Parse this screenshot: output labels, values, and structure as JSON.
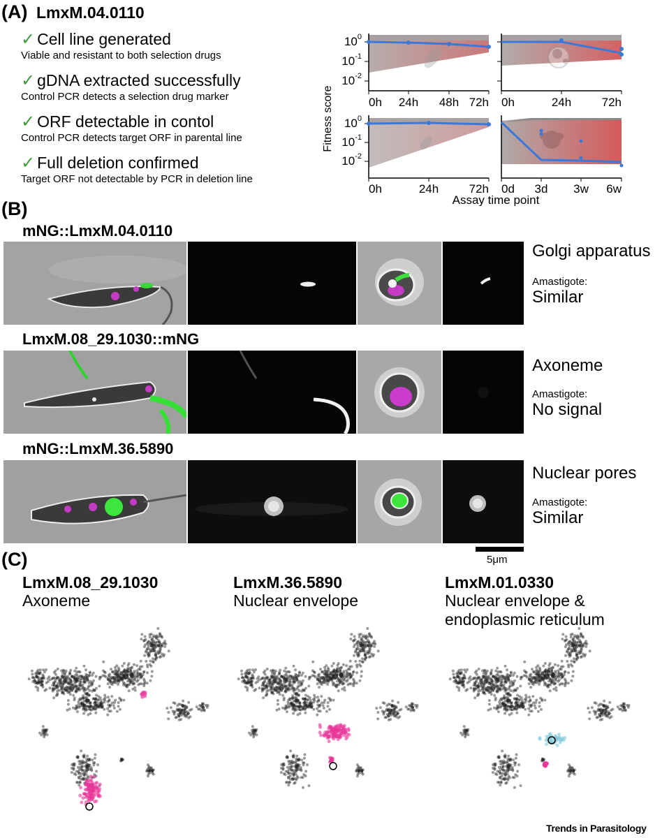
{
  "panelA": {
    "label": "(A)",
    "gene": "LmxM.04.0110",
    "checks": [
      {
        "title": "Cell line generated",
        "detail": "Viable and resistant to both selection drugs"
      },
      {
        "title": "gDNA extracted successfully",
        "detail": "Control PCR detects a selection drug marker"
      },
      {
        "title": "ORF detectable in contol",
        "detail": "Control PCR detects target ORF in parental line"
      },
      {
        "title": "Full deletion confirmed",
        "detail": "Target ORF not detectable by PCR in deletion line"
      }
    ],
    "y_axis_label": "Fitness score",
    "x_axis_label": "Assay time point"
  },
  "chart_data": [
    {
      "type": "line",
      "panel": "top-left",
      "x": [
        "0h",
        "24h",
        "48h",
        "72h"
      ],
      "ylog": true,
      "yticks": [
        "10^0",
        "10^-1",
        "10^-2"
      ],
      "series": [
        {
          "values": [
            1.0,
            0.92,
            0.78,
            0.55
          ]
        }
      ],
      "points": [
        [
          0,
          1.0
        ],
        [
          72,
          0.5
        ]
      ]
    },
    {
      "type": "line",
      "panel": "top-right",
      "x": [
        "0h",
        "24h",
        "72h"
      ],
      "ylog": true,
      "series": [
        {
          "values": [
            1.0,
            1.0,
            0.22
          ]
        }
      ],
      "points": [
        [
          24,
          1.1
        ],
        [
          72,
          0.3
        ],
        [
          72,
          0.18
        ]
      ]
    },
    {
      "type": "line",
      "panel": "bottom-left",
      "x": [
        "0h",
        "24h",
        "72h"
      ],
      "ylog": true,
      "yticks": [
        "10^0",
        "10^-1",
        "10^-2"
      ],
      "series": [
        {
          "values": [
            1.0,
            1.05,
            0.9
          ]
        }
      ],
      "points": []
    },
    {
      "type": "line",
      "panel": "bottom-right",
      "x": [
        "0d",
        "3d",
        "3w",
        "6w"
      ],
      "ylog": true,
      "series": [
        {
          "values": [
            1.0,
            0.006,
            0.0055,
            0.005
          ]
        }
      ],
      "points": [
        [
          3,
          0.3
        ],
        [
          3,
          0.2
        ],
        [
          3,
          0.008
        ],
        [
          3,
          0.1
        ]
      ]
    }
  ],
  "panelB": {
    "label": "(B)",
    "scale_bar": "5μm",
    "rows": [
      {
        "title": "mNG::LmxM.04.0110",
        "location": "Golgi apparatus",
        "amastigote_label": "Amastigote:",
        "amastigote_result": "Similar"
      },
      {
        "title": "LmxM.08_29.1030::mNG",
        "location": "Axoneme",
        "amastigote_label": "Amastigote:",
        "amastigote_result": "No signal"
      },
      {
        "title": "mNG::LmxM.36.5890",
        "location": "Nuclear pores",
        "amastigote_label": "Amastigote:",
        "amastigote_result": "Similar"
      }
    ]
  },
  "panelC": {
    "label": "(C)",
    "maps": [
      {
        "gene": "LmxM.08_29.1030",
        "location": "Axoneme"
      },
      {
        "gene": "LmxM.36.5890",
        "location": "Nuclear envelope"
      },
      {
        "gene": "LmxM.01.0330",
        "location": "Nuclear envelope &",
        "location2": "endoplasmic reticulum"
      }
    ]
  },
  "credit": "Trends in Parasitology",
  "colors": {
    "series": "#3b78d8",
    "check": "#3e9a3a",
    "highlight": "#e8379a",
    "cyan": "#7fc8d8"
  }
}
